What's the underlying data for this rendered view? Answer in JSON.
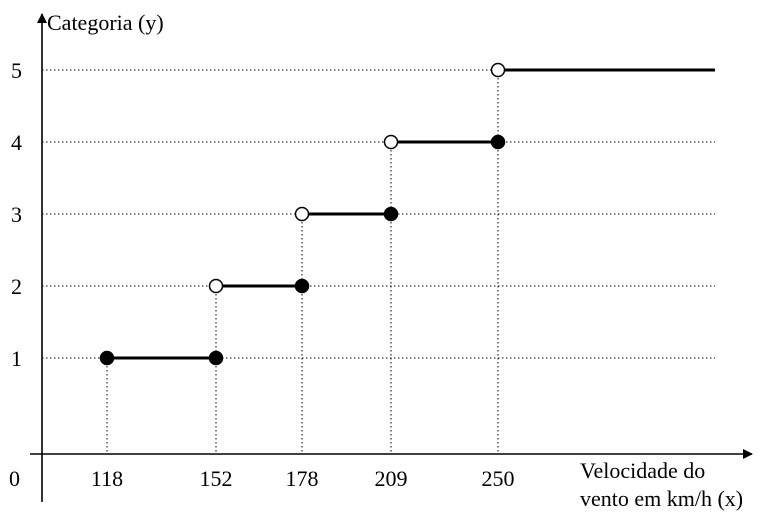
{
  "chart_data": {
    "type": "line",
    "step": true,
    "title": "",
    "ylabel": "Categoria (y)",
    "xlabel_lines": [
      "Velocidade do",
      "vento em km/h (x)"
    ],
    "origin_label": "0",
    "x_ticks": [
      118,
      152,
      178,
      209,
      250
    ],
    "y_ticks": [
      1,
      2,
      3,
      4,
      5
    ],
    "grid": "dotted horizontal at each category, dotted vertical at each breakpoint",
    "segments": [
      {
        "category": 1,
        "x_start": 118,
        "x_end": 152,
        "start_closed": true,
        "end_closed": true
      },
      {
        "category": 2,
        "x_start": 152,
        "x_end": 178,
        "start_closed": false,
        "end_closed": true
      },
      {
        "category": 3,
        "x_start": 178,
        "x_end": 209,
        "start_closed": false,
        "end_closed": true
      },
      {
        "category": 4,
        "x_start": 209,
        "x_end": 250,
        "start_closed": false,
        "end_closed": true
      },
      {
        "category": 5,
        "x_start": 250,
        "x_end": null,
        "start_closed": false,
        "end_closed": null
      }
    ]
  }
}
